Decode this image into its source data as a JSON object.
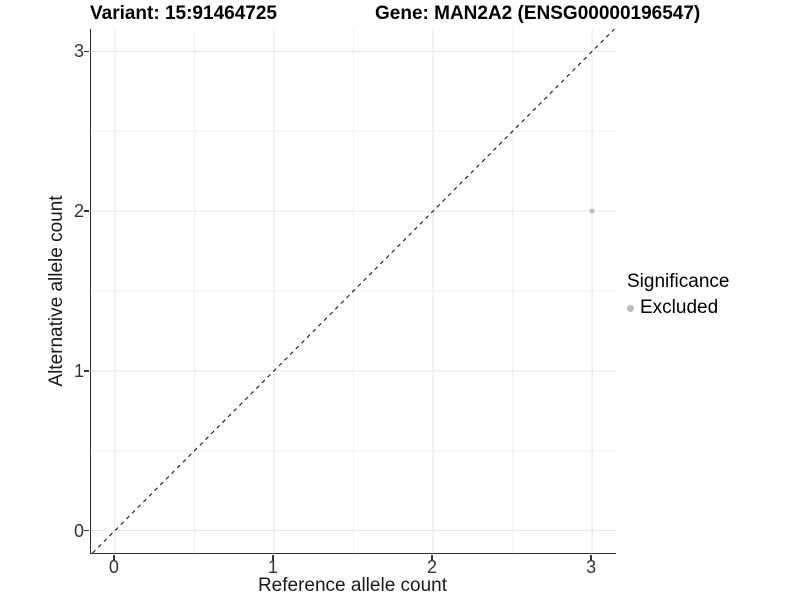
{
  "titles": {
    "variant": "Variant: 15:91464725",
    "gene": "Gene: MAN2A2 (ENSG00000196547)"
  },
  "legend": {
    "title": "Significance",
    "items": [
      {
        "label": "Excluded",
        "color": "#bdbdbd",
        "marker": "circle"
      }
    ]
  },
  "chart_data": {
    "type": "scatter",
    "title": "Variant: 15:91464725   Gene: MAN2A2 (ENSG00000196547)",
    "xlabel": "Reference allele count",
    "ylabel": "Alternative allele count",
    "xlim": [
      -0.15,
      3.15
    ],
    "ylim": [
      -0.14,
      3.14
    ],
    "x_ticks": [
      0,
      1,
      2,
      3
    ],
    "y_ticks": [
      0,
      1,
      2,
      3
    ],
    "minor_ticks": [
      0.5,
      1.5,
      2.5
    ],
    "grid": true,
    "legend_position": "right",
    "series": [
      {
        "name": "Excluded",
        "color": "#bdbdbd",
        "points": [
          {
            "x": 3,
            "y": 2
          }
        ]
      }
    ],
    "reference_line": {
      "type": "identity",
      "style": "dashed",
      "color": "#000000"
    },
    "style_colors": {
      "grid_major": "#e6e6e6",
      "grid_minor": "#f0f0f0",
      "axis_line": "#333333",
      "tick_label": "#333333"
    }
  }
}
